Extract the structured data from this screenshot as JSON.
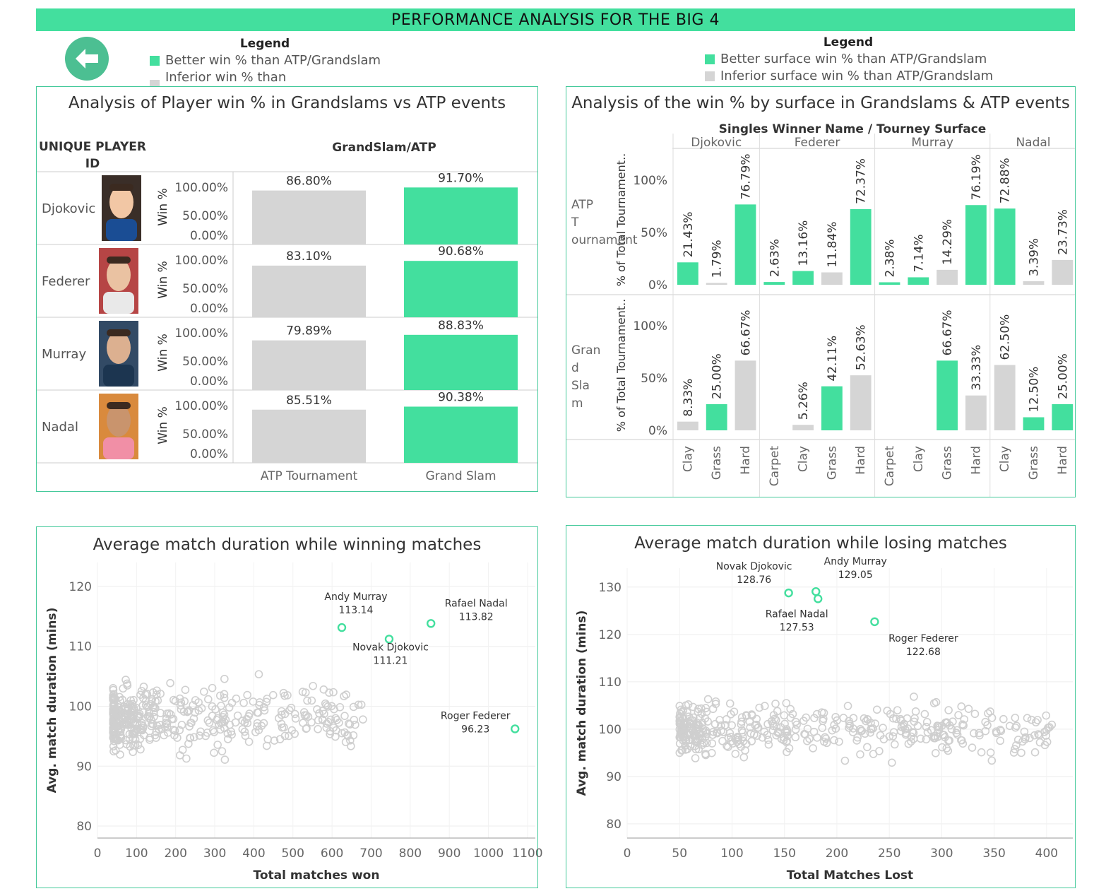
{
  "header": {
    "title": "PERFORMANCE ANALYSIS FOR THE BIG 4"
  },
  "colors": {
    "accent": "#43df9e",
    "better": "#43df9e",
    "inferior": "#d5d5d5",
    "panel_border": "#43c99a",
    "back_button": "#4cbf92"
  },
  "legend_left": {
    "title": "Legend",
    "better": "Better win % than ATP/Grandslam",
    "inferior": "Inferior win % than ATP/Grandslam"
  },
  "legend_right": {
    "title": "Legend",
    "better": "Better surface win % than ATP/Grandslam",
    "inferior": "Inferior surface win % than ATP/Grandslam"
  },
  "panel_win": {
    "title": "Analysis of Player win %  in Grandslams vs ATP events",
    "row_header": "UNIQUE PLAYER ID",
    "col_header": "GrandSlam/ATP"
  },
  "panel_surface": {
    "title": "Analysis of the win % by surface in Grandslams & ATP events",
    "top_header": "Singles Winner Name  /  Tourney Surface"
  },
  "panel_won": {
    "title": "Average match duration while winning matches"
  },
  "panel_lost": {
    "title": "Average match duration while losing matches"
  },
  "chart_data": [
    {
      "type": "bar",
      "title": "Analysis of Player win %  in Grandslams vs ATP events",
      "row_header": "UNIQUE PLAYER ID",
      "col_header": "GrandSlam/ATP",
      "ylabel": "Win %",
      "yticks": [
        "100.00%",
        "50.00%",
        "0.00%"
      ],
      "ylim": [
        0,
        100
      ],
      "categories": [
        "ATP Tournament",
        "Grand Slam"
      ],
      "players": [
        {
          "name": "Djokovic",
          "atp": 86.8,
          "gs": 91.7,
          "atp_label": "86.80%",
          "gs_label": "91.70%",
          "atp_better": false,
          "gs_better": true
        },
        {
          "name": "Federer",
          "atp": 83.1,
          "gs": 90.68,
          "atp_label": "83.10%",
          "gs_label": "90.68%",
          "atp_better": false,
          "gs_better": true
        },
        {
          "name": "Murray",
          "atp": 79.89,
          "gs": 88.83,
          "atp_label": "79.89%",
          "gs_label": "88.83%",
          "atp_better": false,
          "gs_better": true
        },
        {
          "name": "Nadal",
          "atp": 85.51,
          "gs": 90.38,
          "atp_label": "85.51%",
          "gs_label": "90.38%",
          "atp_better": false,
          "gs_better": true
        }
      ]
    },
    {
      "type": "bar",
      "title": "Analysis of the win % by surface in Grandslams & ATP events",
      "top_header": "Singles Winner Name  /  Tourney Surface",
      "ylabel": "% of Total Tournament..",
      "yticks": [
        "100%",
        "50%",
        "0%"
      ],
      "ylim": [
        0,
        100
      ],
      "rows": [
        "ATP T ournament",
        "Gran d Sla m"
      ],
      "players": [
        {
          "name": "Djokovic",
          "surfaces": [
            "Clay",
            "Grass",
            "Hard"
          ],
          "atp": [
            {
              "value": 21.43,
              "label": "21.43%",
              "better": true
            },
            {
              "value": 1.79,
              "label": "1.79%",
              "better": false
            },
            {
              "value": 76.79,
              "label": "76.79%",
              "better": true
            }
          ],
          "gs": [
            {
              "value": 8.33,
              "label": "8.33%",
              "better": false
            },
            {
              "value": 25.0,
              "label": "25.00%",
              "better": true
            },
            {
              "value": 66.67,
              "label": "66.67%",
              "better": false
            }
          ]
        },
        {
          "name": "Federer",
          "surfaces": [
            "Carpet",
            "Clay",
            "Grass",
            "Hard"
          ],
          "atp": [
            {
              "value": 2.63,
              "label": "2.63%",
              "better": true
            },
            {
              "value": 13.16,
              "label": "13.16%",
              "better": true
            },
            {
              "value": 11.84,
              "label": "11.84%",
              "better": false
            },
            {
              "value": 72.37,
              "label": "72.37%",
              "better": true
            }
          ],
          "gs": [
            null,
            {
              "value": 5.26,
              "label": "5.26%",
              "better": false
            },
            {
              "value": 42.11,
              "label": "42.11%",
              "better": true
            },
            {
              "value": 52.63,
              "label": "52.63%",
              "better": false
            }
          ]
        },
        {
          "name": "Murray",
          "surfaces": [
            "Carpet",
            "Clay",
            "Grass",
            "Hard"
          ],
          "atp": [
            {
              "value": 2.38,
              "label": "2.38%",
              "better": true
            },
            {
              "value": 7.14,
              "label": "7.14%",
              "better": true
            },
            {
              "value": 14.29,
              "label": "14.29%",
              "better": false
            },
            {
              "value": 76.19,
              "label": "76.19%",
              "better": true
            }
          ],
          "gs": [
            null,
            null,
            {
              "value": 66.67,
              "label": "66.67%",
              "better": true
            },
            {
              "value": 33.33,
              "label": "33.33%",
              "better": false
            }
          ]
        },
        {
          "name": "Nadal",
          "surfaces": [
            "Clay",
            "Grass",
            "Hard"
          ],
          "atp": [
            {
              "value": 72.88,
              "label": "72.88%",
              "better": true
            },
            {
              "value": 3.39,
              "label": "3.39%",
              "better": false
            },
            {
              "value": 23.73,
              "label": "23.73%",
              "better": false
            }
          ],
          "gs": [
            {
              "value": 62.5,
              "label": "62.50%",
              "better": false
            },
            {
              "value": 12.5,
              "label": "12.50%",
              "better": true
            },
            {
              "value": 25.0,
              "label": "25.00%",
              "better": true
            }
          ]
        }
      ]
    },
    {
      "type": "scatter",
      "title": "Average match duration while winning matches",
      "xlabel": "Total matches won",
      "ylabel": "Avg. match duration (mins)",
      "xlim": [
        0,
        1120
      ],
      "ylim": [
        78,
        124
      ],
      "xticks": [
        0,
        100,
        200,
        300,
        400,
        500,
        600,
        700,
        800,
        900,
        1000,
        1100
      ],
      "yticks": [
        80,
        90,
        100,
        110,
        120
      ],
      "highlights": [
        {
          "name": "Andy Murray",
          "x": 625,
          "y": 113.14,
          "value": "113.14"
        },
        {
          "name": "Rafael Nadal",
          "x": 853,
          "y": 113.82,
          "value": "113.82"
        },
        {
          "name": "Novak Djokovic",
          "x": 746,
          "y": 111.21,
          "value": "111.21"
        },
        {
          "name": "Roger Federer",
          "x": 1068,
          "y": 96.23,
          "value": "96.23"
        }
      ]
    },
    {
      "type": "scatter",
      "title": "Average match duration while losing matches",
      "xlabel": "Total Matches Lost",
      "ylabel": "Avg. match duration (mins)",
      "xlim": [
        0,
        425
      ],
      "ylim": [
        77,
        134
      ],
      "xticks": [
        0,
        50,
        100,
        150,
        200,
        250,
        300,
        350,
        400
      ],
      "yticks": [
        80,
        90,
        100,
        110,
        120,
        130
      ],
      "highlights": [
        {
          "name": "Novak Djokovic",
          "x": 154,
          "y": 128.76,
          "value": "128.76"
        },
        {
          "name": "Andy Murray",
          "x": 180,
          "y": 129.05,
          "value": "129.05"
        },
        {
          "name": "Rafael Nadal",
          "x": 182,
          "y": 127.53,
          "value": "127.53"
        },
        {
          "name": "Roger Federer",
          "x": 236,
          "y": 122.68,
          "value": "122.68"
        }
      ]
    }
  ]
}
